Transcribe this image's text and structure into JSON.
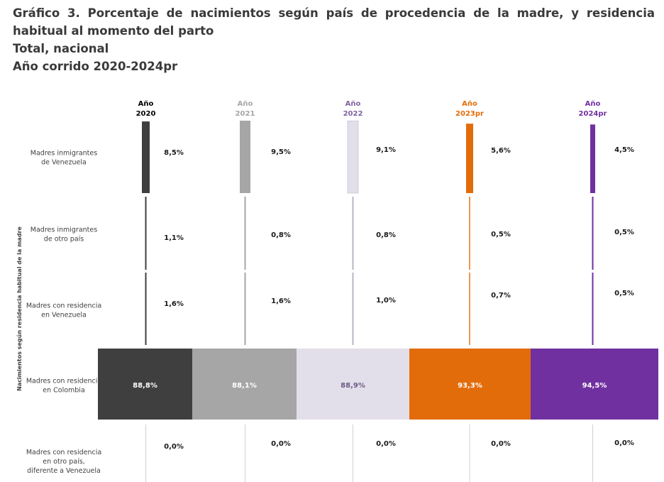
{
  "title": "Gráfico 3. Porcentaje de nacimientos según país de procedencia de la madre, y residencia habitual al momento del parto",
  "subtitle1": "Total, nacional",
  "subtitle2": "Año corrido 2020-2024pr",
  "colors": {
    "2020": "#3f3f3f",
    "2021": "#a6a6a6",
    "2022": "#e3dfea",
    "2023": "#e36c0a",
    "2024": "#7030a0",
    "title": "#3a3a3a"
  },
  "chart_data": {
    "type": "bar",
    "ylabel": "Nacimientos según residencia habitual de la madre",
    "years": [
      {
        "key": "2020",
        "label": [
          "Año",
          "2020"
        ],
        "label_color": "#000000"
      },
      {
        "key": "2021",
        "label": [
          "Año",
          "2021"
        ],
        "label_color": "#a6a6a6"
      },
      {
        "key": "2022",
        "label": [
          "Año",
          "2022"
        ],
        "label_color": "#7f64a0"
      },
      {
        "key": "2023",
        "label": [
          "Año",
          "2023pr"
        ],
        "label_color": "#e36c0a"
      },
      {
        "key": "2024",
        "label": [
          "Año",
          "2024pr"
        ],
        "label_color": "#7030a0"
      }
    ],
    "categories": [
      [
        "Madres inmigrantes",
        "de Venezuela"
      ],
      [
        "Madres inmigrantes",
        "de otro país"
      ],
      [
        "Madres con residencia",
        "en Venezuela"
      ],
      [
        "Madres con residencia",
        "en  Colombia"
      ],
      [
        "Madres con residencia",
        "en otro país,",
        "diferente a Venezuela"
      ]
    ],
    "series": [
      {
        "year": "2020",
        "values": [
          8.5,
          1.1,
          1.6,
          88.8,
          0.0
        ],
        "labels": [
          "8,5%",
          "1,1%",
          "1,6%",
          "88,8%",
          "0,0%"
        ]
      },
      {
        "year": "2021",
        "values": [
          9.5,
          0.8,
          1.6,
          88.1,
          0.0
        ],
        "labels": [
          "9,5%",
          "0,8%",
          "1,6%",
          "88,1%",
          "0,0%"
        ]
      },
      {
        "year": "2022",
        "values": [
          9.1,
          0.8,
          1.0,
          88.9,
          0.0
        ],
        "labels": [
          "9,1%",
          "0,8%",
          "1,0%",
          "88,9%",
          "0,0%"
        ]
      },
      {
        "year": "2023",
        "values": [
          5.6,
          0.5,
          0.7,
          93.3,
          0.0
        ],
        "labels": [
          "5,6%",
          "0,5%",
          "0,7%",
          "93,3%",
          "0,0%"
        ]
      },
      {
        "year": "2024",
        "values": [
          4.5,
          0.5,
          0.5,
          94.5,
          0.0
        ],
        "labels": [
          "4,5%",
          "0,5%",
          "0,5%",
          "94,5%",
          "0,0%"
        ]
      }
    ]
  }
}
